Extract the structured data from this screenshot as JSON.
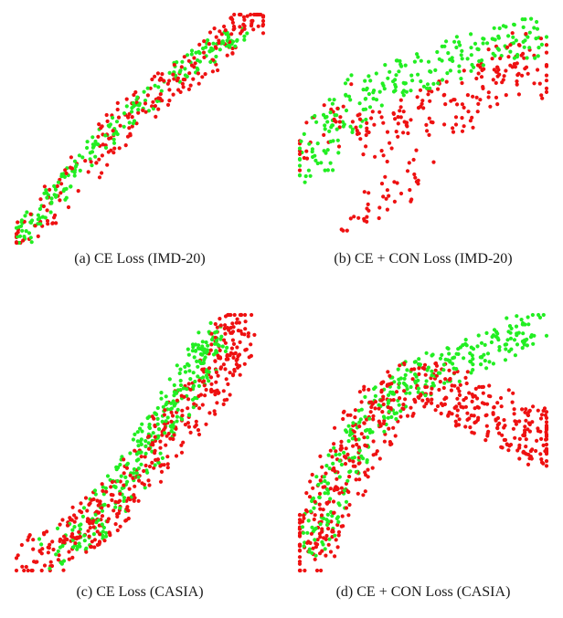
{
  "colors": {
    "class_a": "#ee1111",
    "class_b": "#22ee22"
  },
  "chart_data": [
    {
      "type": "scatter",
      "caption": "(a) CE Loss (IMD-20)",
      "xlim": [
        0,
        1
      ],
      "ylim": [
        0,
        1
      ],
      "series": [
        {
          "color": "#ee1111",
          "shape": "band",
          "points": 230,
          "path": [
            [
              0.01,
              0.02
            ],
            [
              0.15,
              0.17
            ],
            [
              0.3,
              0.36
            ],
            [
              0.45,
              0.55
            ],
            [
              0.62,
              0.7
            ],
            [
              0.78,
              0.82
            ],
            [
              0.9,
              0.95
            ],
            [
              1.0,
              0.99
            ]
          ],
          "width": 0.08,
          "seed": 11
        },
        {
          "color": "#22ee22",
          "shape": "band",
          "points": 200,
          "path": [
            [
              0.02,
              0.03
            ],
            [
              0.15,
              0.2
            ],
            [
              0.3,
              0.4
            ],
            [
              0.45,
              0.55
            ],
            [
              0.62,
              0.72
            ],
            [
              0.78,
              0.83
            ],
            [
              0.9,
              0.92
            ]
          ],
          "width": 0.05,
          "seed": 12
        }
      ]
    },
    {
      "type": "scatter",
      "caption": "(b) CE + CON Loss (IMD-20)",
      "xlim": [
        0,
        1
      ],
      "ylim": [
        0,
        1
      ],
      "series": [
        {
          "color": "#ee1111",
          "shape": "band",
          "points": 200,
          "path": [
            [
              0.05,
              0.4
            ],
            [
              0.2,
              0.6
            ],
            [
              0.35,
              0.45
            ],
            [
              0.5,
              0.55
            ],
            [
              0.65,
              0.6
            ],
            [
              0.8,
              0.72
            ],
            [
              0.92,
              0.8
            ],
            [
              1.0,
              0.75
            ]
          ],
          "width": 0.14,
          "seed": 21
        },
        {
          "color": "#ee1111",
          "shape": "band",
          "points": 40,
          "path": [
            [
              0.2,
              0.1
            ],
            [
              0.35,
              0.2
            ],
            [
              0.5,
              0.3
            ]
          ],
          "width": 0.08,
          "seed": 22
        },
        {
          "color": "#22ee22",
          "shape": "band",
          "points": 230,
          "path": [
            [
              0.03,
              0.3
            ],
            [
              0.1,
              0.5
            ],
            [
              0.25,
              0.65
            ],
            [
              0.45,
              0.75
            ],
            [
              0.65,
              0.82
            ],
            [
              0.85,
              0.9
            ],
            [
              0.95,
              0.9
            ]
          ],
          "width": 0.1,
          "seed": 23
        }
      ]
    },
    {
      "type": "scatter",
      "caption": "(c) CE Loss (CASIA)",
      "xlim": [
        0,
        1
      ],
      "ylim": [
        0,
        1
      ],
      "series": [
        {
          "color": "#ee1111",
          "shape": "band",
          "points": 420,
          "path": [
            [
              0.02,
              0.02
            ],
            [
              0.2,
              0.1
            ],
            [
              0.35,
              0.22
            ],
            [
              0.5,
              0.38
            ],
            [
              0.62,
              0.55
            ],
            [
              0.78,
              0.7
            ],
            [
              0.85,
              0.85
            ],
            [
              0.9,
              0.97
            ]
          ],
          "width": 0.1,
          "seed": 31
        },
        {
          "color": "#22ee22",
          "shape": "band",
          "points": 300,
          "path": [
            [
              0.15,
              0.08
            ],
            [
              0.3,
              0.18
            ],
            [
              0.45,
              0.35
            ],
            [
              0.55,
              0.52
            ],
            [
              0.65,
              0.66
            ],
            [
              0.75,
              0.82
            ],
            [
              0.8,
              0.92
            ]
          ],
          "width": 0.08,
          "seed": 32
        }
      ]
    },
    {
      "type": "scatter",
      "caption": "(d) CE + CON Loss (CASIA)",
      "xlim": [
        0,
        1
      ],
      "ylim": [
        0,
        1
      ],
      "series": [
        {
          "color": "#ee1111",
          "shape": "band",
          "points": 520,
          "path": [
            [
              0.02,
              0.02
            ],
            [
              0.08,
              0.2
            ],
            [
              0.18,
              0.4
            ],
            [
              0.3,
              0.6
            ],
            [
              0.45,
              0.72
            ],
            [
              0.6,
              0.7
            ],
            [
              0.75,
              0.62
            ],
            [
              0.92,
              0.55
            ],
            [
              1.0,
              0.5
            ]
          ],
          "width": 0.12,
          "seed": 41
        },
        {
          "color": "#22ee22",
          "shape": "band",
          "points": 320,
          "path": [
            [
              0.05,
              0.1
            ],
            [
              0.12,
              0.3
            ],
            [
              0.25,
              0.55
            ],
            [
              0.4,
              0.72
            ],
            [
              0.6,
              0.8
            ],
            [
              0.8,
              0.88
            ],
            [
              0.96,
              0.96
            ]
          ],
          "width": 0.08,
          "seed": 42
        }
      ]
    }
  ]
}
